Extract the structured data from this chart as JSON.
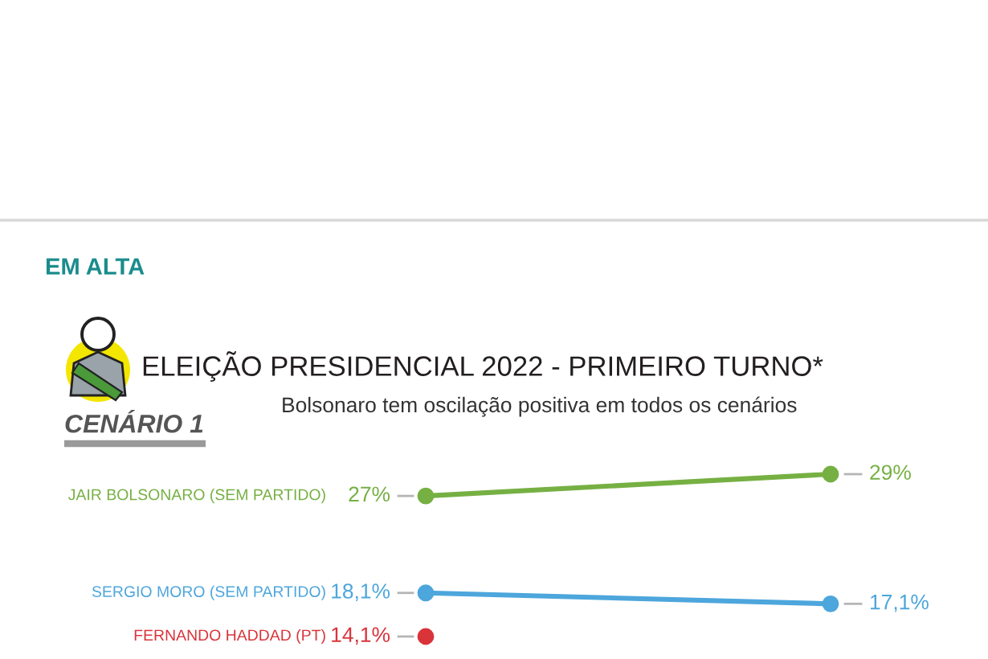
{
  "chart_data": {
    "type": "line",
    "title": "ELEIÇÃO PRESIDENCIAL 2022 - PRIMEIRO TURNO*",
    "subtitle": "Bolsonaro tem oscilação positiva em todos os cenários",
    "annotations": [
      "EM ALTA",
      "CENÁRIO 1"
    ],
    "categories": [
      null,
      null
    ],
    "marker": "circle",
    "series": [
      {
        "name": "JAIR BOLSONARO (SEM PARTIDO)",
        "color": "#76b043",
        "values": [
          27,
          29
        ],
        "value_labels": [
          "27%",
          "29%"
        ]
      },
      {
        "name": "SERGIO MORO (SEM PARTIDO)",
        "color": "#4da6dc",
        "values": [
          18.1,
          17.1
        ],
        "value_labels": [
          "18,1%",
          "17,1%"
        ]
      },
      {
        "name": "FERNANDO HADDAD (PT)",
        "color": "#d9343a",
        "values": [
          14.1,
          null
        ],
        "value_labels": [
          "14,1%",
          null
        ]
      }
    ]
  }
}
